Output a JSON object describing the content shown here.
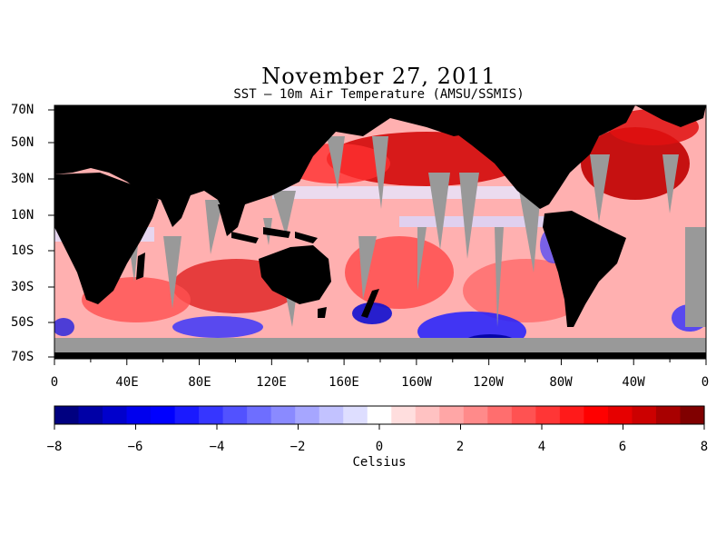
{
  "figure": {
    "title": "November 27, 2011",
    "subtitle": "SST – 10m Air Temperature (AMSU/SSMIS)"
  },
  "map": {
    "lat_labels": [
      "70N",
      "50N",
      "30N",
      "10N",
      "10S",
      "30S",
      "50S",
      "70S"
    ],
    "lon_labels": [
      "0",
      "40E",
      "80E",
      "120E",
      "160E",
      "160W",
      "120W",
      "80W",
      "40W",
      "0"
    ],
    "colors": {
      "land": "#000000",
      "missing": "#999999"
    }
  },
  "colorbar": {
    "tick_labels": [
      "−8",
      "−6",
      "−4",
      "−2",
      "0",
      "2",
      "4",
      "6",
      "8"
    ],
    "min": -8,
    "max": 8,
    "units": "Celsius",
    "colors": [
      "#000080",
      "#0000a6",
      "#0000cc",
      "#0000ee",
      "#0000ff",
      "#1a1aff",
      "#3636ff",
      "#5252ff",
      "#6e6eff",
      "#8a8aff",
      "#a6a6ff",
      "#c2c2ff",
      "#dedeff",
      "#ffffff",
      "#ffdede",
      "#ffc2c2",
      "#ffa6a6",
      "#ff8a8a",
      "#ff6e6e",
      "#ff5252",
      "#ff3636",
      "#ff1a1a",
      "#ff0000",
      "#e60000",
      "#cc0000",
      "#a80000",
      "#800000"
    ]
  }
}
